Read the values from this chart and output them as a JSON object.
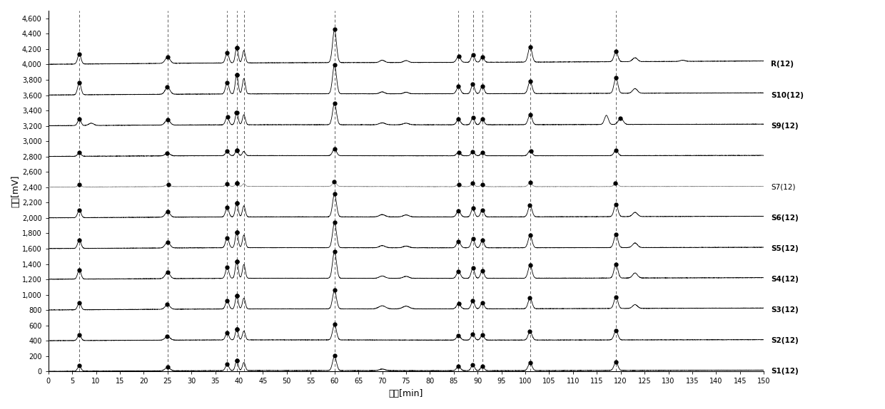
{
  "title": "",
  "xlabel": "时间[min]",
  "ylabel": "信号[mV]",
  "ylim": [
    0,
    4700
  ],
  "xlim": [
    0,
    150
  ],
  "xticks": [
    0,
    5,
    10,
    15,
    20,
    25,
    30,
    35,
    40,
    45,
    50,
    55,
    60,
    65,
    70,
    75,
    80,
    85,
    90,
    95,
    100,
    105,
    110,
    115,
    120,
    125,
    130,
    135,
    140,
    145,
    150
  ],
  "yticks": [
    0,
    200,
    400,
    600,
    800,
    1000,
    1200,
    1400,
    1600,
    1800,
    2000,
    2200,
    2400,
    2600,
    2800,
    3000,
    3200,
    3400,
    3600,
    3800,
    4000,
    4200,
    4400,
    4600
  ],
  "trace_labels": [
    "R(12)",
    "S10(12)",
    "S9(12)",
    "",
    "S7(12)",
    "S6(12)",
    "S5(12)",
    "S4(12)",
    "S3(12)",
    "S2(12)",
    "S1(12)"
  ],
  "trace_offsets": [
    4000,
    3600,
    3200,
    2800,
    2400,
    2000,
    1600,
    1200,
    800,
    400,
    0
  ],
  "dashed_lines": [
    6.5,
    25,
    37.5,
    39.5,
    41,
    60,
    86,
    89,
    91,
    101,
    119
  ],
  "background_color": "#ffffff",
  "line_color": "#000000"
}
